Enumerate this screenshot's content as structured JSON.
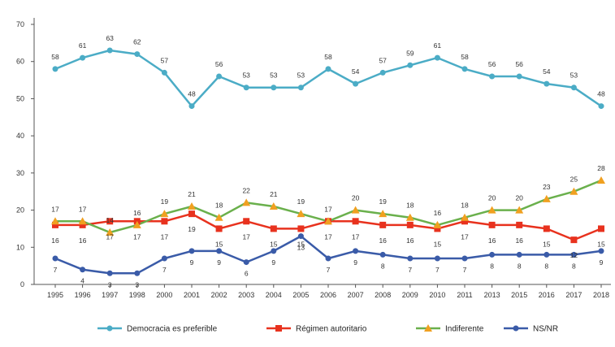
{
  "chart_data": {
    "type": "line",
    "x": [
      "1995",
      "1996",
      "1997",
      "1998",
      "2000",
      "2001",
      "2002",
      "2003",
      "2004",
      "2005",
      "2006",
      "2007",
      "2008",
      "2009",
      "2010",
      "2011",
      "2013",
      "2015",
      "2016",
      "2017",
      "2018"
    ],
    "ylim": [
      0,
      70
    ],
    "yticks": [
      "0",
      "10",
      "20",
      "30",
      "40",
      "50",
      "60",
      "70"
    ],
    "grid": false,
    "legend_position": "bottom",
    "series": [
      {
        "name": "Democracia es preferible",
        "color": "#4bacc6",
        "marker": "circle",
        "values": [
          58,
          61,
          63,
          62,
          57,
          48,
          56,
          53,
          53,
          53,
          58,
          54,
          57,
          59,
          61,
          58,
          56,
          56,
          54,
          53,
          48
        ]
      },
      {
        "name": "Régimen autoritario",
        "color": "#e8321e",
        "marker": "square",
        "values": [
          16,
          16,
          17,
          17,
          17,
          19,
          15,
          17,
          15,
          15,
          17,
          17,
          16,
          16,
          15,
          17,
          16,
          16,
          15,
          12,
          15
        ]
      },
      {
        "name": "Indiferente",
        "color": "#6ab04c",
        "marker": "triangle",
        "marker_color": "#f0a020",
        "values": [
          17,
          17,
          14,
          16,
          19,
          21,
          18,
          22,
          21,
          19,
          17,
          20,
          19,
          18,
          16,
          18,
          20,
          20,
          23,
          25,
          28
        ]
      },
      {
        "name": "NS/NR",
        "color": "#3a5ba8",
        "marker": "circle",
        "values": [
          7,
          4,
          3,
          3,
          7,
          9,
          9,
          6,
          9,
          13,
          7,
          9,
          8,
          7,
          7,
          7,
          8,
          8,
          8,
          8,
          9
        ]
      }
    ],
    "data_labels": {
      "Democracia es preferible": [
        "58",
        "61",
        "63",
        "62",
        "57",
        "48",
        "56",
        "53",
        "53",
        "53",
        "58",
        "54",
        "57",
        "59",
        "61",
        "58",
        "56",
        "56",
        "54",
        "53",
        "48"
      ],
      "Régimen autoritario": [
        "16",
        "16",
        "17",
        "17",
        "17",
        "19",
        "15",
        "17",
        "15",
        "15",
        "17",
        "17",
        "16",
        "16",
        "15",
        "17",
        "16",
        "16",
        "15",
        "12",
        "15"
      ],
      "Indiferente": [
        "17",
        "17",
        "14",
        "16",
        "19",
        "21",
        "18",
        "22",
        "21",
        "19",
        "17",
        "20",
        "19",
        "18",
        "16",
        "18",
        "20",
        "20",
        "23",
        "25",
        "28"
      ],
      "NS/NR": [
        "7",
        "4",
        "3",
        "3",
        "7",
        "9",
        "9",
        "6",
        "9",
        "13",
        "7",
        "9",
        "8",
        "7",
        "7",
        "7",
        "8",
        "8",
        "8",
        "8",
        "9"
      ]
    }
  }
}
